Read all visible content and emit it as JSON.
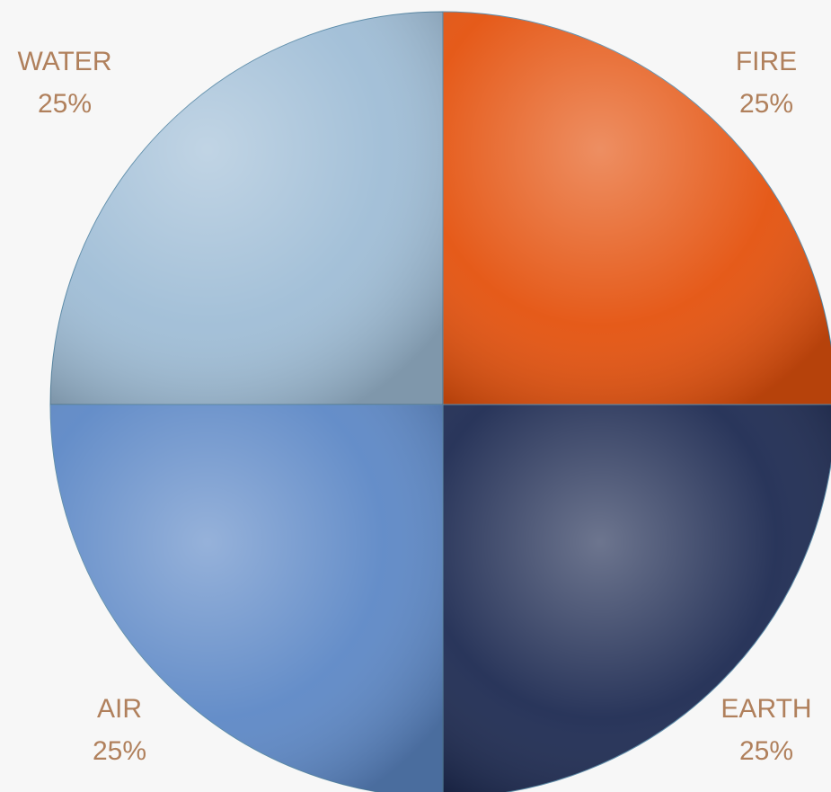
{
  "chart_data": {
    "type": "pie",
    "categories": [
      "FIRE",
      "EARTH",
      "AIR",
      "WATER"
    ],
    "values": [
      25,
      25,
      25,
      25
    ],
    "value_labels": [
      "25%",
      "25%",
      "25%",
      "25%"
    ],
    "colors": [
      "#e4520e",
      "#1e2b52",
      "#5d88c6",
      "#9fbdd6"
    ]
  }
}
